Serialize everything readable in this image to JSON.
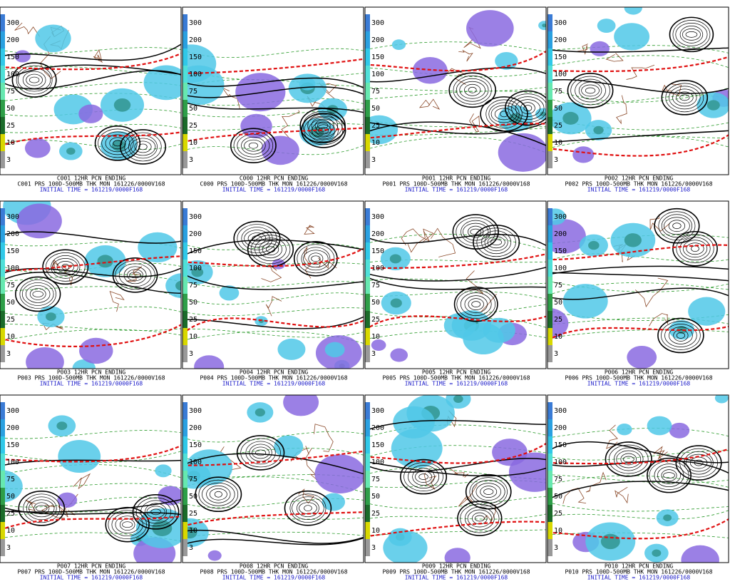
{
  "colorbar": {
    "labels": [
      "300",
      "200",
      "150",
      "100",
      "75",
      "50",
      "25",
      "10",
      "3"
    ]
  },
  "panels": [
    {
      "title": "C001 12HR PCN ENDING",
      "line2": "C001 PRS 100D-500MB THK MON 161226/0000V168",
      "line3": "INITIAL TIME = 161219/0000F168"
    },
    {
      "title": "C000 12HR PCN ENDING",
      "line2": "C000 PRS 100D-500MB THK MON 161226/0000V168",
      "line3": "INITIAL TIME = 161219/0000F168"
    },
    {
      "title": "P001 12HR PCN ENDING",
      "line2": "P001 PRS 100D-500MB THK MON 161226/0000V168",
      "line3": "INITIAL TIME = 161219/0000F168"
    },
    {
      "title": "P002 12HR PCN ENDING",
      "line2": "P002 PRS 100D-500MB THK MON 161226/0000V168",
      "line3": "INITIAL TIME = 161219/0000F168"
    },
    {
      "title": "P003 12HR PCN ENDING",
      "line2": "P003 PRS 100D-500MB THK MON 161226/0000V168",
      "line3": "INITIAL TIME = 161219/0000F168"
    },
    {
      "title": "P004 12HR PCN ENDING",
      "line2": "P004 PRS 100D-500MB THK MON 161226/0000V168",
      "line3": "INITIAL TIME = 161219/0000F168"
    },
    {
      "title": "P005 12HR PCN ENDING",
      "line2": "P005 PRS 100D-500MB THK MON 161226/0000V168",
      "line3": "INITIAL TIME = 161219/0000F168"
    },
    {
      "title": "P006 12HR PCN ENDING",
      "line2": "P006 PRS 100D-500MB THK MON 161226/0000V168",
      "line3": "INITIAL TIME = 161219/0000F168"
    },
    {
      "title": "P007 12HR PCN ENDING",
      "line2": "P007 PRS 100D-500MB THK MON 161226/0000V168",
      "line3": "INITIAL TIME = 161219/0000F168"
    },
    {
      "title": "P008 12HR PCN ENDING",
      "line2": "P008 PRS 100D-500MB THK MON 161226/0000V168",
      "line3": "INITIAL TIME = 161219/0000F168"
    },
    {
      "title": "P009 12HR PCN ENDING",
      "line2": "P009 PRS 100D-500MB THK MON 161226/0000V168",
      "line3": "INITIAL TIME = 161219/0000F168"
    },
    {
      "title": "P010 12HR PCN ENDING",
      "line2": "P010 PRS 100D-500MB THK MON 161226/0000V168",
      "line3": "INITIAL TIME = 161219/0000F168"
    }
  ]
}
